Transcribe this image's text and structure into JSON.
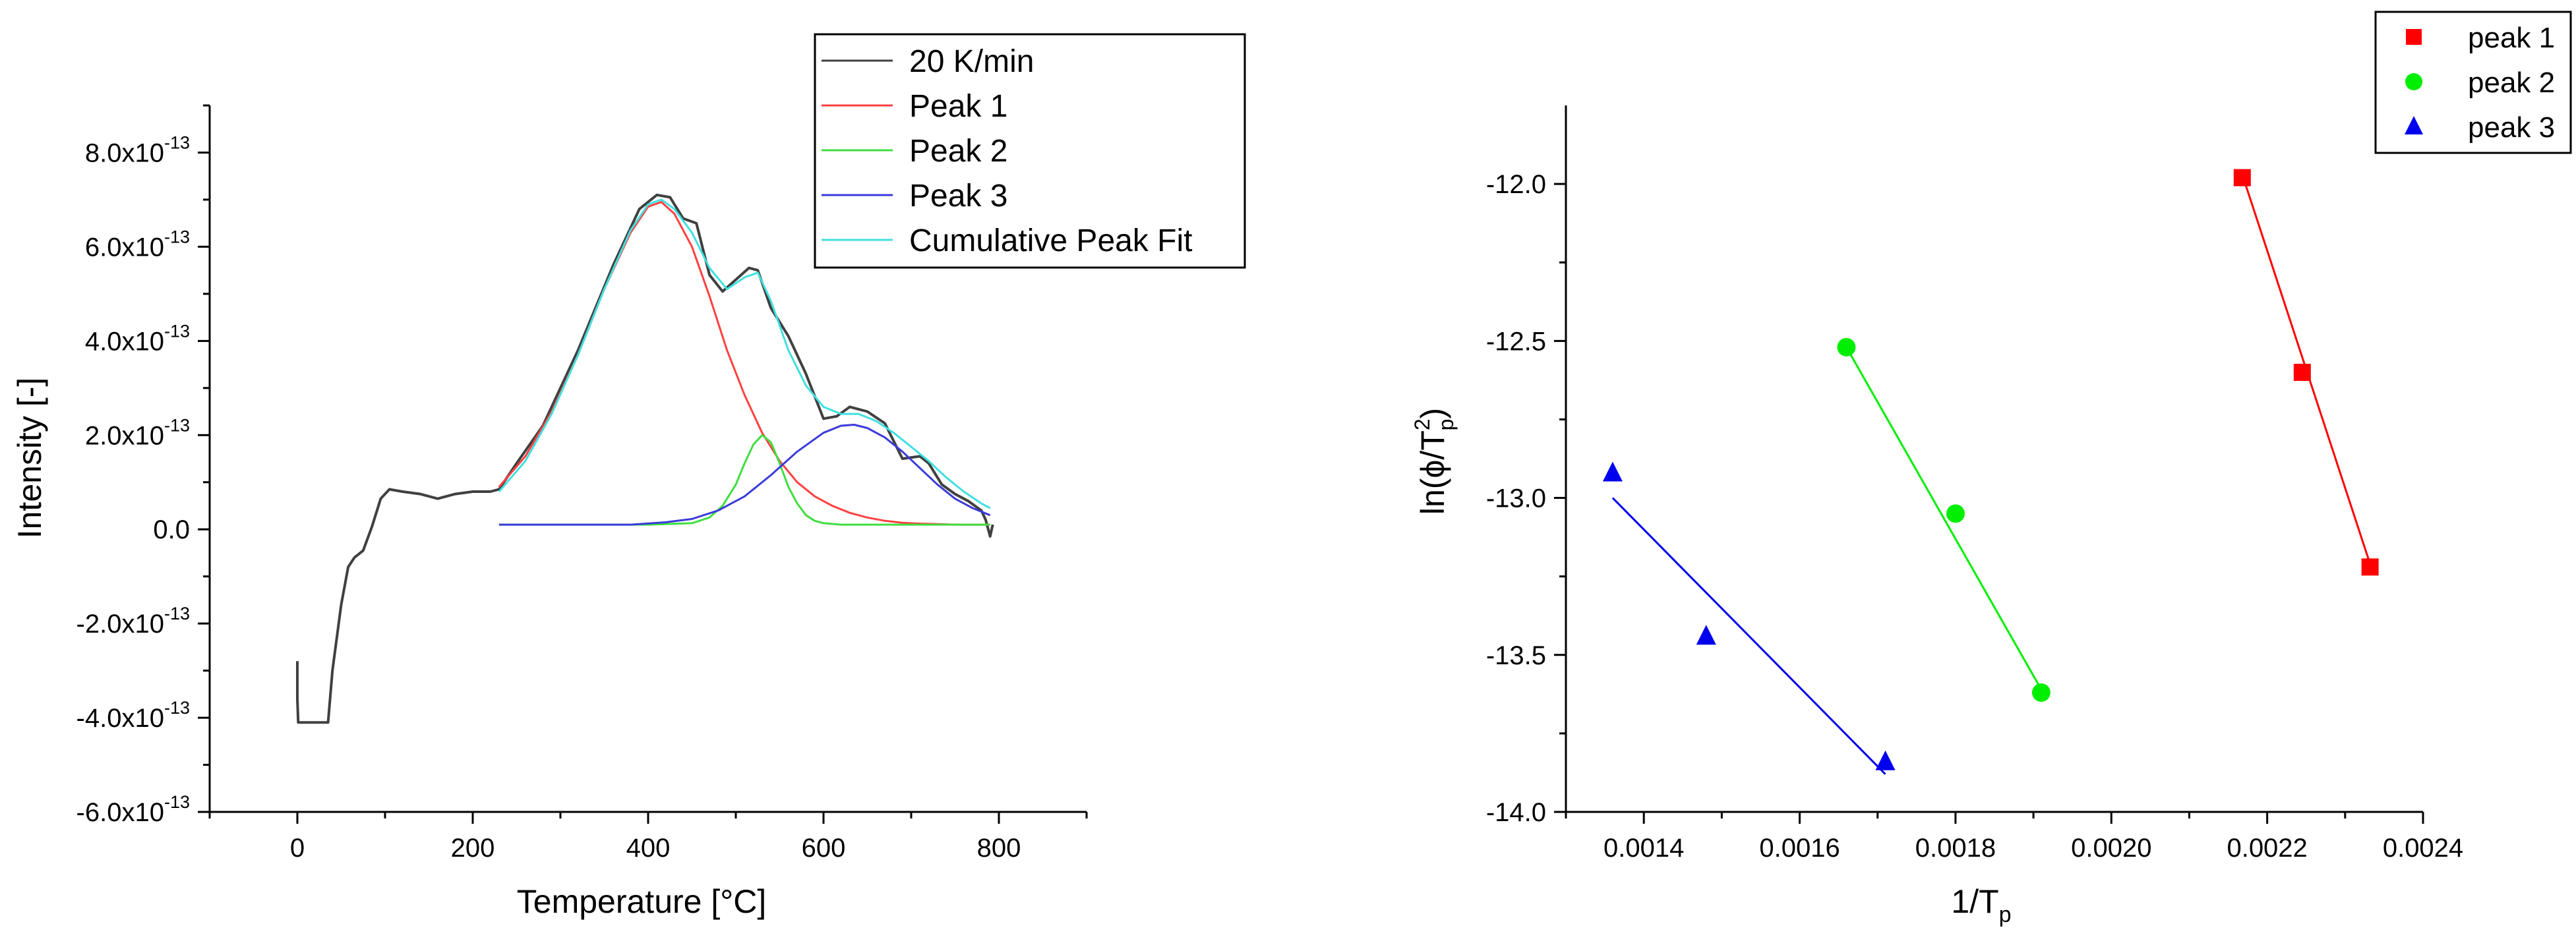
{
  "chart_data": [
    {
      "type": "line",
      "id": "dsc",
      "title": "",
      "xlabel": "Temperature [°C]",
      "ylabel": "Intensity [-]",
      "xlim": [
        -100,
        900
      ],
      "ylim": [
        -6e-13,
        9e-13
      ],
      "x_ticks": [
        0,
        200,
        400,
        600,
        800
      ],
      "x_tick_labels": [
        "0",
        "200",
        "400",
        "600",
        "800"
      ],
      "y_ticks": [
        -6e-13,
        -4e-13,
        -2e-13,
        0,
        2e-13,
        4e-13,
        6e-13,
        8e-13
      ],
      "y_tick_labels": [
        {
          "base": "-6.0x10",
          "exp": "-13"
        },
        {
          "base": "-4.0x10",
          "exp": "-13"
        },
        {
          "base": "-2.0x10",
          "exp": "-13"
        },
        {
          "base": "0.0",
          "exp": ""
        },
        {
          "base": "2.0x10",
          "exp": "-13"
        },
        {
          "base": "4.0x10",
          "exp": "-13"
        },
        {
          "base": "6.0x10",
          "exp": "-13"
        },
        {
          "base": "8.0x10",
          "exp": "-13"
        }
      ],
      "legend_position": "top-right",
      "series": [
        {
          "name": "20 K/min",
          "color": "#404040",
          "x": [
            0,
            0,
            1,
            35,
            40,
            50,
            58,
            65,
            75,
            85,
            95,
            105,
            120,
            140,
            160,
            180,
            200,
            220,
            230,
            250,
            280,
            320,
            360,
            390,
            410,
            425,
            440,
            455,
            470,
            485,
            500,
            515,
            525,
            540,
            560,
            580,
            600,
            615,
            630,
            650,
            670,
            690,
            710,
            720,
            735,
            750,
            765,
            780,
            785,
            790,
            793
          ],
          "y": [
            -2.8e-13,
            -3.6e-13,
            -4.1e-13,
            -4.1e-13,
            -3e-13,
            -1.6e-13,
            -8e-14,
            -6e-14,
            -4.5e-14,
            5e-15,
            6.5e-14,
            8.5e-14,
            8e-14,
            7.5e-14,
            6.5e-14,
            7.5e-14,
            8e-14,
            8e-14,
            8.5e-14,
            1.4e-13,
            2.2e-13,
            3.8e-13,
            5.6e-13,
            6.8e-13,
            7.1e-13,
            7.05e-13,
            6.6e-13,
            6.5e-13,
            5.4e-13,
            5.05e-13,
            5.3e-13,
            5.55e-13,
            5.5e-13,
            4.7e-13,
            4.1e-13,
            3.3e-13,
            2.35e-13,
            2.4e-13,
            2.6e-13,
            2.5e-13,
            2.25e-13,
            1.5e-13,
            1.55e-13,
            1.4e-13,
            9.5e-14,
            7.5e-14,
            6e-14,
            4e-14,
            2e-14,
            -1.5e-14,
            1e-14
          ]
        },
        {
          "name": "Peak 1",
          "color": "#ff4040",
          "x": [
            230,
            260,
            290,
            320,
            350,
            380,
            400,
            415,
            430,
            450,
            470,
            490,
            510,
            530,
            550,
            570,
            590,
            610,
            630,
            650,
            670,
            690,
            710,
            730,
            750,
            770,
            790
          ],
          "y": [
            9e-14,
            1.55e-13,
            2.5e-13,
            3.7e-13,
            5.1e-13,
            6.3e-13,
            6.85e-13,
            6.95e-13,
            6.7e-13,
            6e-13,
            4.95e-13,
            3.8e-13,
            2.85e-13,
            2.05e-13,
            1.45e-13,
            1e-13,
            7e-14,
            5e-14,
            3.5e-14,
            2.5e-14,
            1.8e-14,
            1.4e-14,
            1.2e-14,
            1.1e-14,
            1e-14,
            1e-14,
            1e-14
          ]
        },
        {
          "name": "Peak 2",
          "color": "#40dd40",
          "x": [
            230,
            300,
            400,
            450,
            470,
            485,
            500,
            510,
            520,
            530,
            540,
            550,
            560,
            570,
            580,
            590,
            600,
            620,
            700,
            790
          ],
          "y": [
            1e-14,
            1e-14,
            1e-14,
            1.3e-14,
            2.5e-14,
            5e-14,
            9.5e-14,
            1.4e-13,
            1.8e-13,
            2e-13,
            1.85e-13,
            1.4e-13,
            9e-14,
            5.5e-14,
            3e-14,
            1.8e-14,
            1.3e-14,
            1e-14,
            1e-14,
            1e-14
          ]
        },
        {
          "name": "Peak 3",
          "color": "#3b3bd9",
          "x": [
            230,
            300,
            380,
            420,
            450,
            480,
            510,
            540,
            570,
            600,
            620,
            635,
            650,
            670,
            690,
            710,
            730,
            750,
            770,
            790
          ],
          "y": [
            1e-14,
            1e-14,
            1e-14,
            1.5e-14,
            2.2e-14,
            4e-14,
            7e-14,
            1.15e-13,
            1.65e-13,
            2.05e-13,
            2.2e-13,
            2.22e-13,
            2.15e-13,
            1.95e-13,
            1.65e-13,
            1.3e-13,
            9.5e-14,
            6.5e-14,
            4.5e-14,
            3e-14
          ]
        },
        {
          "name": "Cumulative Peak Fit",
          "color": "#40e0e0",
          "x": [
            230,
            260,
            290,
            320,
            350,
            380,
            400,
            415,
            430,
            450,
            470,
            490,
            510,
            525,
            540,
            560,
            580,
            600,
            620,
            640,
            660,
            680,
            700,
            720,
            740,
            760,
            780,
            790
          ],
          "y": [
            8e-14,
            1.45e-13,
            2.45e-13,
            3.7e-13,
            5.1e-13,
            6.35e-13,
            6.9e-13,
            7e-13,
            6.8e-13,
            6.3e-13,
            5.55e-13,
            5.1e-13,
            5.35e-13,
            5.45e-13,
            4.85e-13,
            3.8e-13,
            3.05e-13,
            2.6e-13,
            2.45e-13,
            2.45e-13,
            2.3e-13,
            2.05e-13,
            1.75e-13,
            1.45e-13,
            1.1e-13,
            8e-14,
            5.5e-14,
            4.5e-14
          ]
        }
      ]
    },
    {
      "type": "scatter",
      "id": "kissinger",
      "title": "",
      "xlabel": {
        "base": "1/T",
        "sub": "p"
      },
      "ylabel": {
        "pre": "ln(ϕ/T",
        "sup": "2",
        "sub": "p",
        "post": ")"
      },
      "xlim": [
        0.0013,
        0.0024
      ],
      "ylim": [
        -14.0,
        -11.75
      ],
      "x_ticks": [
        0.0014,
        0.0016,
        0.0018,
        0.002,
        0.0022,
        0.0024
      ],
      "x_tick_labels": [
        "0.0014",
        "0.0016",
        "0.0018",
        "0.0020",
        "0.0022",
        "0.0024"
      ],
      "y_ticks": [
        -14.0,
        -13.5,
        -13.0,
        -12.5,
        -12.0
      ],
      "y_tick_labels": [
        "-14.0",
        "-13.5",
        "-13.0",
        "-12.5",
        "-12.0"
      ],
      "legend_position": "top-right",
      "series": [
        {
          "name": "peak 1",
          "marker": "square",
          "color": "#ff0000",
          "x": [
            0.002168,
            0.002245,
            0.002332
          ],
          "y": [
            -11.98,
            -12.6,
            -13.22
          ],
          "fit": {
            "x": [
              0.002168,
              0.002332
            ],
            "y": [
              -11.97,
              -13.21
            ]
          }
        },
        {
          "name": "peak 2",
          "marker": "circle",
          "color": "#00ee00",
          "x": [
            0.00166,
            0.0018,
            0.00191
          ],
          "y": [
            -12.52,
            -13.05,
            -13.62
          ],
          "fit": {
            "x": [
              0.00166,
              0.00191
            ],
            "y": [
              -12.52,
              -13.61
            ]
          }
        },
        {
          "name": "peak 3",
          "marker": "triangle",
          "color": "#0000ee",
          "x": [
            0.00136,
            0.00148,
            0.00171
          ],
          "y": [
            -12.92,
            -13.44,
            -13.84
          ],
          "fit": {
            "x": [
              0.00136,
              0.00171
            ],
            "y": [
              -13.0,
              -13.88
            ]
          }
        }
      ]
    }
  ]
}
